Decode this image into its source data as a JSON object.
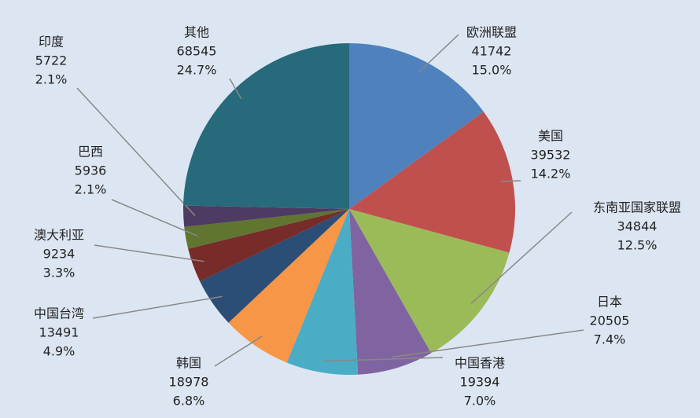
{
  "chart_data": {
    "type": "pie",
    "categories": [
      "欧洲联盟",
      "美国",
      "东南亚国家联盟",
      "日本",
      "中国香港",
      "韩国",
      "中国台湾",
      "澳大利亚",
      "巴西",
      "印度",
      "其他"
    ],
    "values": [
      41742,
      39532,
      34844,
      20505,
      19394,
      18978,
      13491,
      9234,
      5936,
      5722,
      68545
    ],
    "percents": [
      15.0,
      14.2,
      12.5,
      7.4,
      7.0,
      6.8,
      4.9,
      3.3,
      2.1,
      2.1,
      24.7
    ],
    "percent_labels": [
      "15.0%",
      "14.2%",
      "12.5%",
      "7.4%",
      "7.0%",
      "6.8%",
      "4.9%",
      "3.3%",
      "2.1%",
      "2.1%",
      "24.7%"
    ],
    "colors": [
      "#4f81bd",
      "#c0504d",
      "#9bbb59",
      "#8064a2",
      "#4bacc6",
      "#f79646",
      "#2c4d75",
      "#772c2a",
      "#5f7530",
      "#4d3b62",
      "#276a7c"
    ]
  }
}
